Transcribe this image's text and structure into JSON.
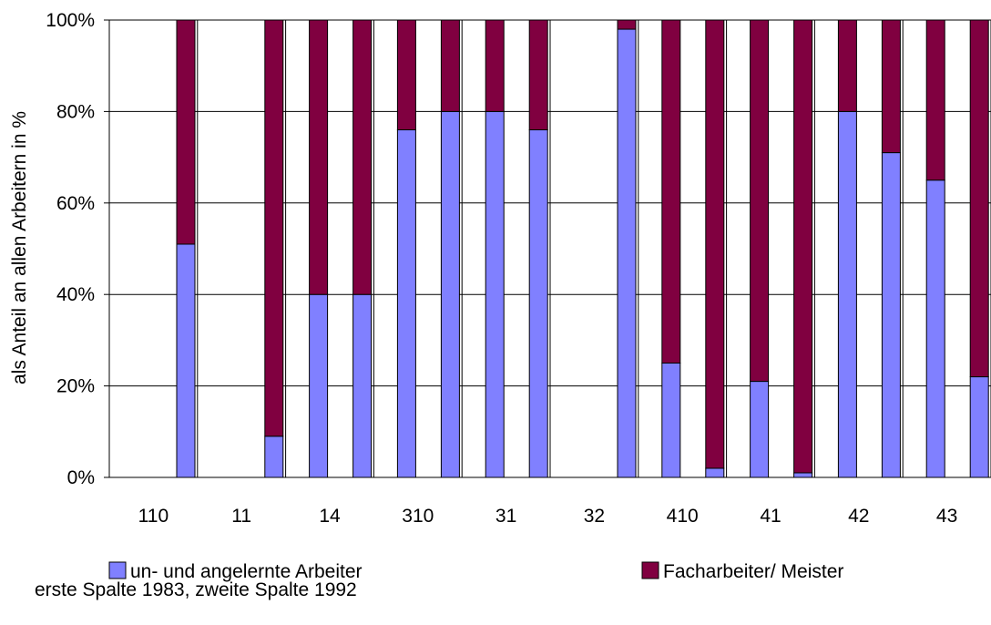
{
  "chart_data": {
    "type": "bar",
    "stacked": true,
    "stack_mode": "percent",
    "ylabel": "als Anteil an allen Arbeitern in %",
    "yticks": [
      "0%",
      "20%",
      "40%",
      "60%",
      "80%",
      "100%"
    ],
    "ylim": [
      0,
      100
    ],
    "grid": "horizontal",
    "groups": [
      "110",
      "11",
      "14",
      "310",
      "31",
      "32",
      "410",
      "41",
      "42",
      "43"
    ],
    "bars_per_group": [
      "1983",
      "1992"
    ],
    "series": [
      {
        "name": "un- und angelernte Arbeiter",
        "color": "#8080ff",
        "values": [
          [
            null,
            51
          ],
          [
            null,
            9
          ],
          [
            40,
            40
          ],
          [
            76,
            80
          ],
          [
            80,
            76
          ],
          [
            null,
            98
          ],
          [
            25,
            2
          ],
          [
            21,
            1
          ],
          [
            80,
            71
          ],
          [
            65,
            22
          ]
        ]
      },
      {
        "name": "Facharbeiter/ Meister",
        "color": "#800040",
        "values": [
          [
            null,
            49
          ],
          [
            null,
            91
          ],
          [
            60,
            60
          ],
          [
            24,
            20
          ],
          [
            20,
            24
          ],
          [
            null,
            2
          ],
          [
            75,
            98
          ],
          [
            79,
            99
          ],
          [
            20,
            29
          ],
          [
            35,
            78
          ]
        ]
      }
    ],
    "legend_position": "bottom",
    "note": "erste Spalte 1983, zweite Spalte 1992"
  }
}
